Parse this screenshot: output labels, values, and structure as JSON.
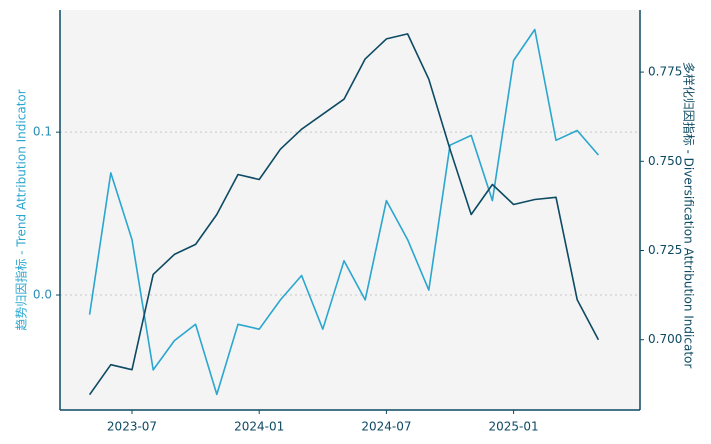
{
  "chart_data": {
    "type": "line",
    "x": [
      "2023-05",
      "2023-06",
      "2023-07",
      "2023-08",
      "2023-09",
      "2023-10",
      "2023-11",
      "2023-12",
      "2024-01",
      "2024-02",
      "2024-03",
      "2024-04",
      "2024-05",
      "2024-06",
      "2024-07",
      "2024-08",
      "2024-09",
      "2024-10",
      "2024-11",
      "2024-12",
      "2025-01",
      "2025-02",
      "2025-03",
      "2025-04",
      "2025-05"
    ],
    "xticks": [
      "2023-07",
      "2024-01",
      "2024-07",
      "2025-01"
    ],
    "ylabel": "趋势归因指标 - Trend Attribution Indicator",
    "y2label": "多样化归因指标 - Diversification Attribution Indicator",
    "ylim": [
      -0.0706,
      0.175
    ],
    "yticks": [
      {
        "value": 0,
        "label": "0.0"
      },
      0.1
    ],
    "y2lim": [
      0.6803,
      0.7924
    ],
    "y2ticks": [
      {
        "value": 0.7,
        "label": "0.700"
      },
      0.725,
      {
        "value": 0.75,
        "label": "0.750"
      },
      0.775
    ],
    "grid": true,
    "series": [
      {
        "color": "#2aa6cf",
        "values": [
          -0.012,
          0.075,
          0.034,
          -0.046,
          -0.028,
          -0.018,
          -0.061,
          -0.018,
          -0.021,
          -0.003,
          0.012,
          -0.021,
          0.021,
          -0.003,
          0.058,
          0.034,
          0.003,
          0.092,
          0.098,
          0.058,
          0.144,
          0.163,
          0.095,
          0.101,
          0.086
        ]
      },
      {
        "color": "#0d4a63",
        "axis": "y2",
        "values": [
          0.6846,
          0.693,
          0.6916,
          0.7183,
          0.7239,
          0.7267,
          0.7351,
          0.7463,
          0.7449,
          0.7534,
          0.759,
          0.7632,
          0.7674,
          0.7787,
          0.7843,
          0.7857,
          0.773,
          0.7534,
          0.7351,
          0.7435,
          0.7379,
          0.7393,
          0.7399,
          0.7112,
          0.7
        ]
      }
    ]
  }
}
